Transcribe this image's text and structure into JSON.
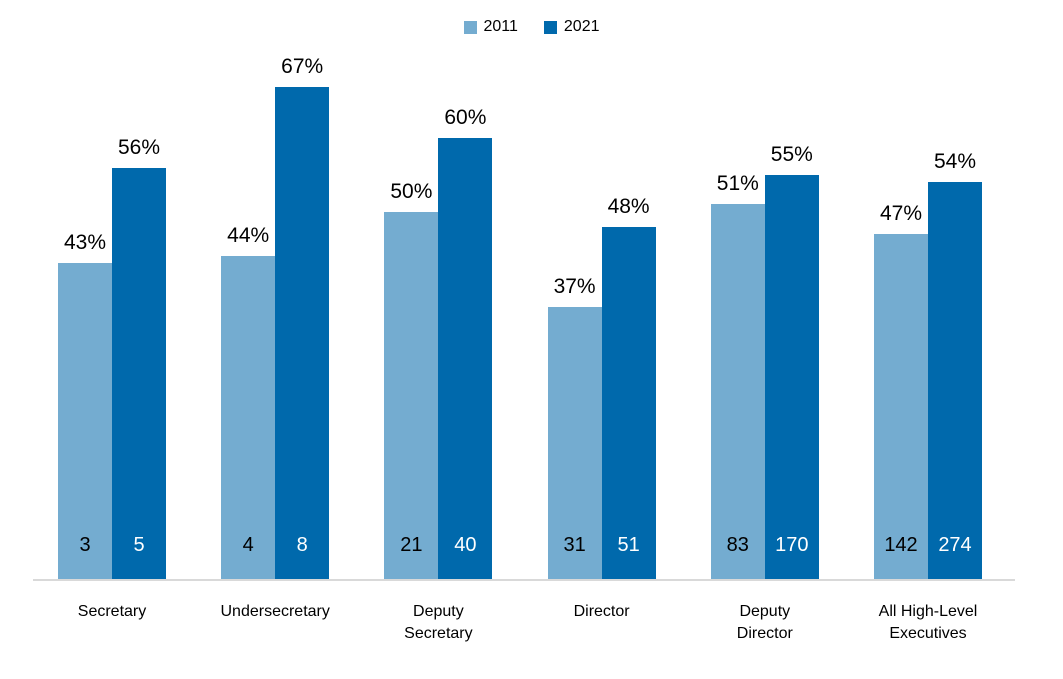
{
  "chart_data": {
    "type": "bar",
    "title": "",
    "xlabel": "",
    "ylabel": "",
    "value_suffix": "%",
    "ylim": [
      0,
      70
    ],
    "grid": false,
    "legend_position": "top-center",
    "background_color": "#ffffff",
    "axis_line_color": "#d9d9d9",
    "categories": [
      "Secretary",
      "Undersecretary",
      "Deputy Secretary",
      "Director",
      "Deputy Director",
      "All High-Level Executives"
    ],
    "categories_wrapped": [
      [
        "Secretary"
      ],
      [
        "Undersecretary"
      ],
      [
        "Deputy",
        "Secretary"
      ],
      [
        "Director"
      ],
      [
        "Deputy",
        "Director"
      ],
      [
        "All High-Level",
        "Executives"
      ]
    ],
    "series": [
      {
        "name": "2011",
        "color": "#74acd0",
        "values": [
          43,
          44,
          50,
          37,
          51,
          47
        ],
        "counts": [
          3,
          4,
          21,
          31,
          83,
          142
        ],
        "count_text_color": "#000000"
      },
      {
        "name": "2021",
        "color": "#0069ac",
        "values": [
          56,
          67,
          60,
          48,
          55,
          54
        ],
        "counts": [
          5,
          8,
          40,
          51,
          170,
          274
        ],
        "count_text_color": "#ffffff"
      }
    ]
  },
  "legend": {
    "items": [
      {
        "label": "2011",
        "color": "#74acd0"
      },
      {
        "label": "2021",
        "color": "#0069ac"
      }
    ]
  }
}
